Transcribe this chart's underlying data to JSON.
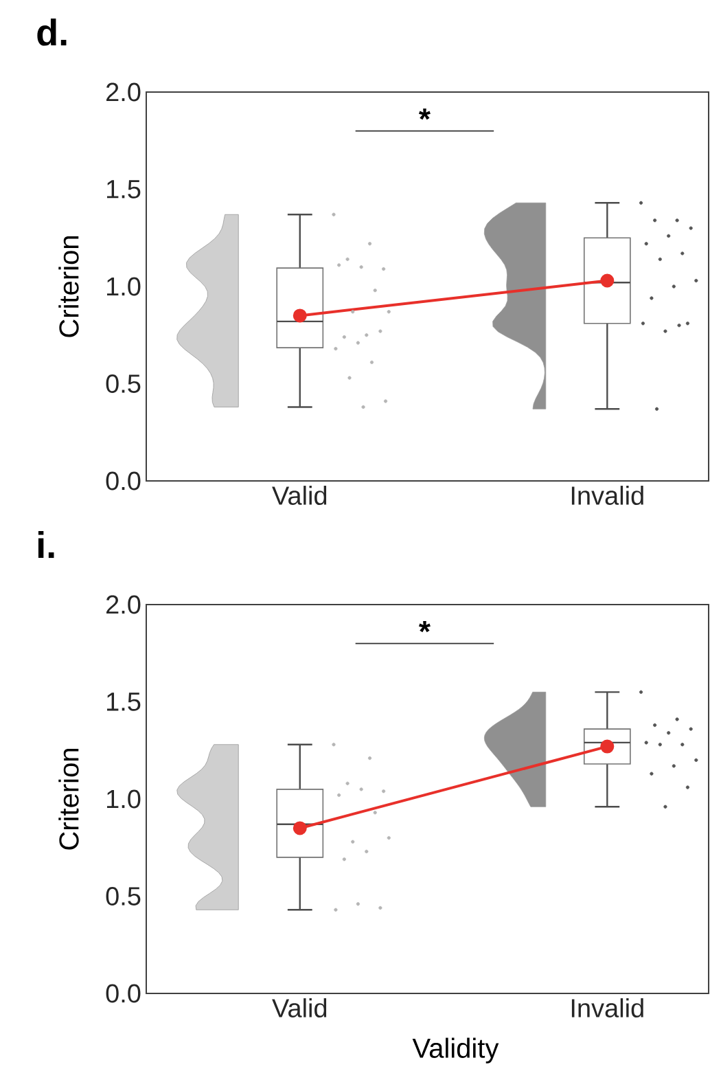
{
  "chart_data": [
    {
      "type": "box",
      "title": "d.",
      "ylabel": "Criterion",
      "categories": [
        "Valid",
        "Invalid"
      ],
      "ylim": [
        0,
        2
      ],
      "yticks": [
        {
          "value": 0,
          "label": "0.0"
        },
        {
          "value": 0.5,
          "label": "0.5"
        },
        {
          "value": 1,
          "label": "1.0"
        },
        {
          "value": 1.5,
          "label": "1.5"
        },
        {
          "value": 2,
          "label": "2.0"
        }
      ],
      "boxes": [
        {
          "low": 0.38,
          "q1": 0.685,
          "median": 0.82,
          "q3": 1.095,
          "high": 1.37
        },
        {
          "low": 0.37,
          "q1": 0.81,
          "median": 1.02,
          "q3": 1.25,
          "high": 1.43
        }
      ],
      "series": [
        {
          "type": "scatter",
          "color": "#b5b5b5",
          "x": [
            "Valid",
            "Valid",
            "Valid",
            "Valid",
            "Valid",
            "Valid",
            "Valid",
            "Valid",
            "Valid",
            "Valid",
            "Valid",
            "Valid",
            "Valid",
            "Valid",
            "Valid",
            "Valid",
            "Valid",
            "Valid"
          ],
          "values": [
            1.37,
            1.22,
            1.14,
            1.09,
            1.1,
            1.11,
            0.98,
            0.87,
            0.87,
            0.75,
            0.74,
            0.77,
            0.71,
            0.68,
            0.61,
            0.53,
            0.41,
            0.38
          ]
        },
        {
          "type": "scatter",
          "color": "#555555",
          "x": [
            "Invalid",
            "Invalid",
            "Invalid",
            "Invalid",
            "Invalid",
            "Invalid",
            "Invalid",
            "Invalid",
            "Invalid",
            "Invalid",
            "Invalid",
            "Invalid",
            "Invalid",
            "Invalid",
            "Invalid",
            "Invalid"
          ],
          "values": [
            1.43,
            1.34,
            1.34,
            1.3,
            1.26,
            1.22,
            1.17,
            1.14,
            1.03,
            1.0,
            0.94,
            0.81,
            0.77,
            0.81,
            0.8,
            0.37
          ]
        },
        {
          "type": "line",
          "color": "#e8302a",
          "marker": "circle",
          "values": [
            0.85,
            1.03
          ]
        }
      ],
      "annotations": [
        "*"
      ]
    },
    {
      "type": "box",
      "title": "i.",
      "xlabel": "Validity",
      "ylabel": "Criterion",
      "categories": [
        "Valid",
        "Invalid"
      ],
      "ylim": [
        0,
        2
      ],
      "yticks": [
        {
          "value": 0,
          "label": "0.0"
        },
        {
          "value": 0.5,
          "label": "0.5"
        },
        {
          "value": 1,
          "label": "1.0"
        },
        {
          "value": 1.5,
          "label": "1.5"
        },
        {
          "value": 2,
          "label": "2.0"
        }
      ],
      "boxes": [
        {
          "low": 0.43,
          "q1": 0.7,
          "median": 0.87,
          "q3": 1.05,
          "high": 1.28
        },
        {
          "low": 0.96,
          "q1": 1.18,
          "median": 1.29,
          "q3": 1.36,
          "high": 1.55
        }
      ],
      "series": [
        {
          "type": "scatter",
          "color": "#b5b5b5",
          "x": [
            "Valid",
            "Valid",
            "Valid",
            "Valid",
            "Valid",
            "Valid",
            "Valid",
            "Valid",
            "Valid",
            "Valid",
            "Valid",
            "Valid",
            "Valid",
            "Valid"
          ],
          "values": [
            1.28,
            1.21,
            1.08,
            1.04,
            1.05,
            1.02,
            0.93,
            0.78,
            0.8,
            0.73,
            0.69,
            0.44,
            0.46,
            0.43
          ]
        },
        {
          "type": "scatter",
          "color": "#555555",
          "x": [
            "Invalid",
            "Invalid",
            "Invalid",
            "Invalid",
            "Invalid",
            "Invalid",
            "Invalid",
            "Invalid",
            "Invalid",
            "Invalid",
            "Invalid",
            "Invalid",
            "Invalid"
          ],
          "values": [
            1.55,
            1.41,
            1.38,
            1.36,
            1.34,
            1.29,
            1.28,
            1.28,
            1.2,
            1.17,
            1.13,
            1.06,
            0.96
          ]
        },
        {
          "type": "line",
          "color": "#e8302a",
          "marker": "circle",
          "values": [
            0.85,
            1.27
          ]
        }
      ],
      "annotations": [
        "*"
      ]
    }
  ]
}
